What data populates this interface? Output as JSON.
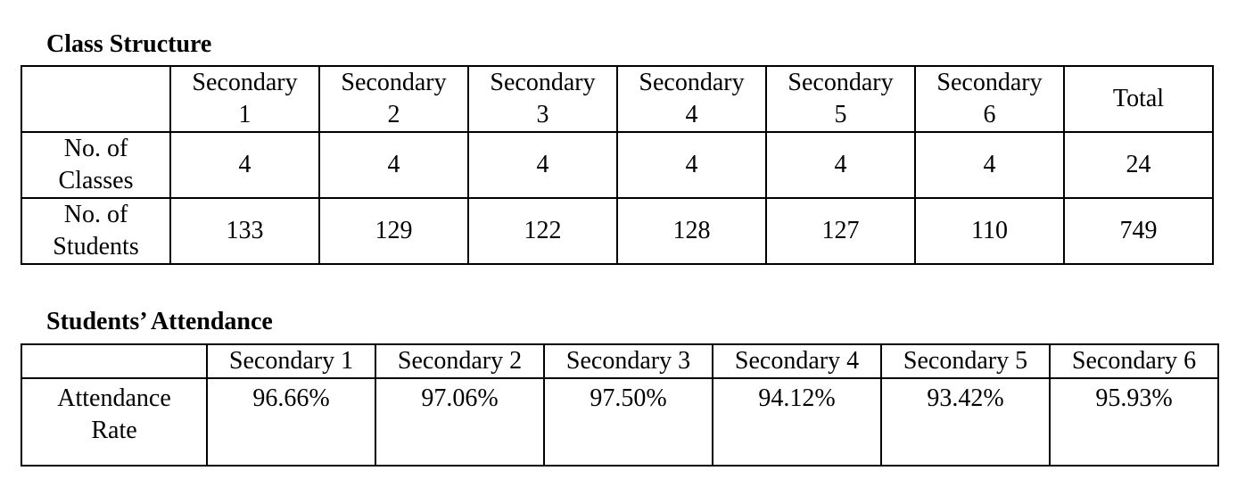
{
  "class_structure": {
    "title": "Class Structure",
    "header": [
      "Secondary\n1",
      "Secondary\n2",
      "Secondary\n3",
      "Secondary\n4",
      "Secondary\n5",
      "Secondary\n6",
      "Total"
    ],
    "rows": [
      {
        "label": "No. of\nClasses",
        "values": [
          4,
          4,
          4,
          4,
          4,
          4,
          24
        ]
      },
      {
        "label": "No. of\nStudents",
        "values": [
          133,
          129,
          122,
          128,
          127,
          110,
          749
        ]
      }
    ]
  },
  "attendance": {
    "title": "Students’ Attendance",
    "header": [
      "Secondary 1",
      "Secondary 2",
      "Secondary 3",
      "Secondary 4",
      "Secondary 5",
      "Secondary 6"
    ],
    "rows": [
      {
        "label": "Attendance\nRate",
        "values": [
          "96.66%",
          "97.06%",
          "97.50%",
          "94.12%",
          "93.42%",
          "95.93%"
        ]
      }
    ]
  }
}
